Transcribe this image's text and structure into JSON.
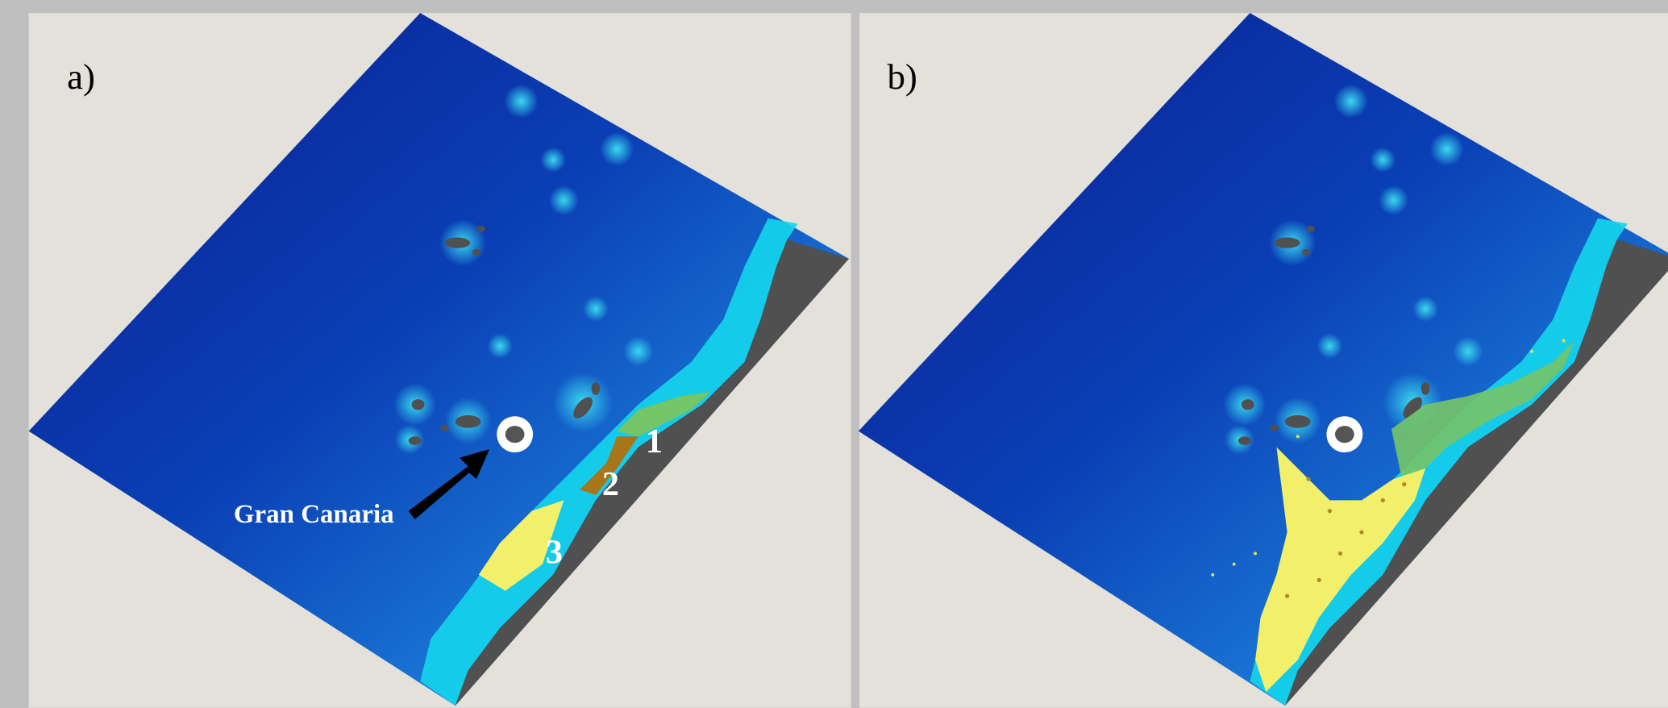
{
  "panels": [
    {
      "label": "a)",
      "callout": "Gran Canaria",
      "zones": [
        "1",
        "2",
        "3"
      ]
    },
    {
      "label": "b)"
    }
  ]
}
